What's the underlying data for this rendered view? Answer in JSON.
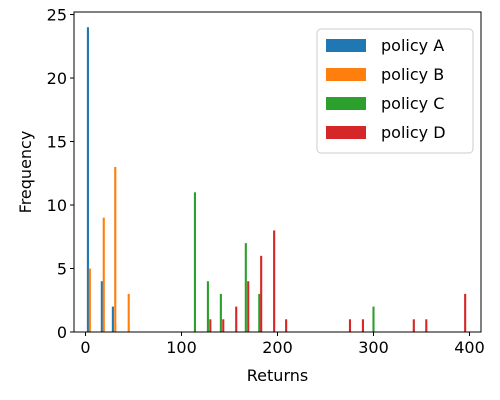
{
  "chart_data": {
    "type": "bar",
    "title": "",
    "xlabel": "Returns",
    "ylabel": "Frequency",
    "xlim": [
      -12,
      412
    ],
    "ylim": [
      0,
      25.2
    ],
    "xticks": [
      0,
      100,
      200,
      300,
      400
    ],
    "yticks": [
      0,
      5,
      10,
      15,
      20,
      25
    ],
    "grid": false,
    "legend_position": "top-right",
    "bar_width": 2.2,
    "series": [
      {
        "name": "policy A",
        "color": "#1f77b4",
        "x": [
          2.5,
          17,
          28.5
        ],
        "values": [
          24,
          4,
          2
        ]
      },
      {
        "name": "policy B",
        "color": "#ff7f0e",
        "x": [
          4.5,
          19,
          31,
          45
        ],
        "values": [
          5,
          9,
          13,
          3
        ]
      },
      {
        "name": "policy C",
        "color": "#2ca02c",
        "x": [
          114,
          127.5,
          141,
          167,
          181,
          300
        ],
        "values": [
          11,
          4,
          3,
          7,
          3,
          2
        ]
      },
      {
        "name": "policy D",
        "color": "#d62728",
        "x": [
          130,
          143.5,
          157,
          169.5,
          183,
          196.5,
          209,
          275.5,
          289,
          342,
          355,
          395.5
        ],
        "values": [
          1,
          1,
          2,
          4,
          6,
          8,
          1,
          1,
          1,
          1,
          1,
          3
        ]
      }
    ]
  }
}
